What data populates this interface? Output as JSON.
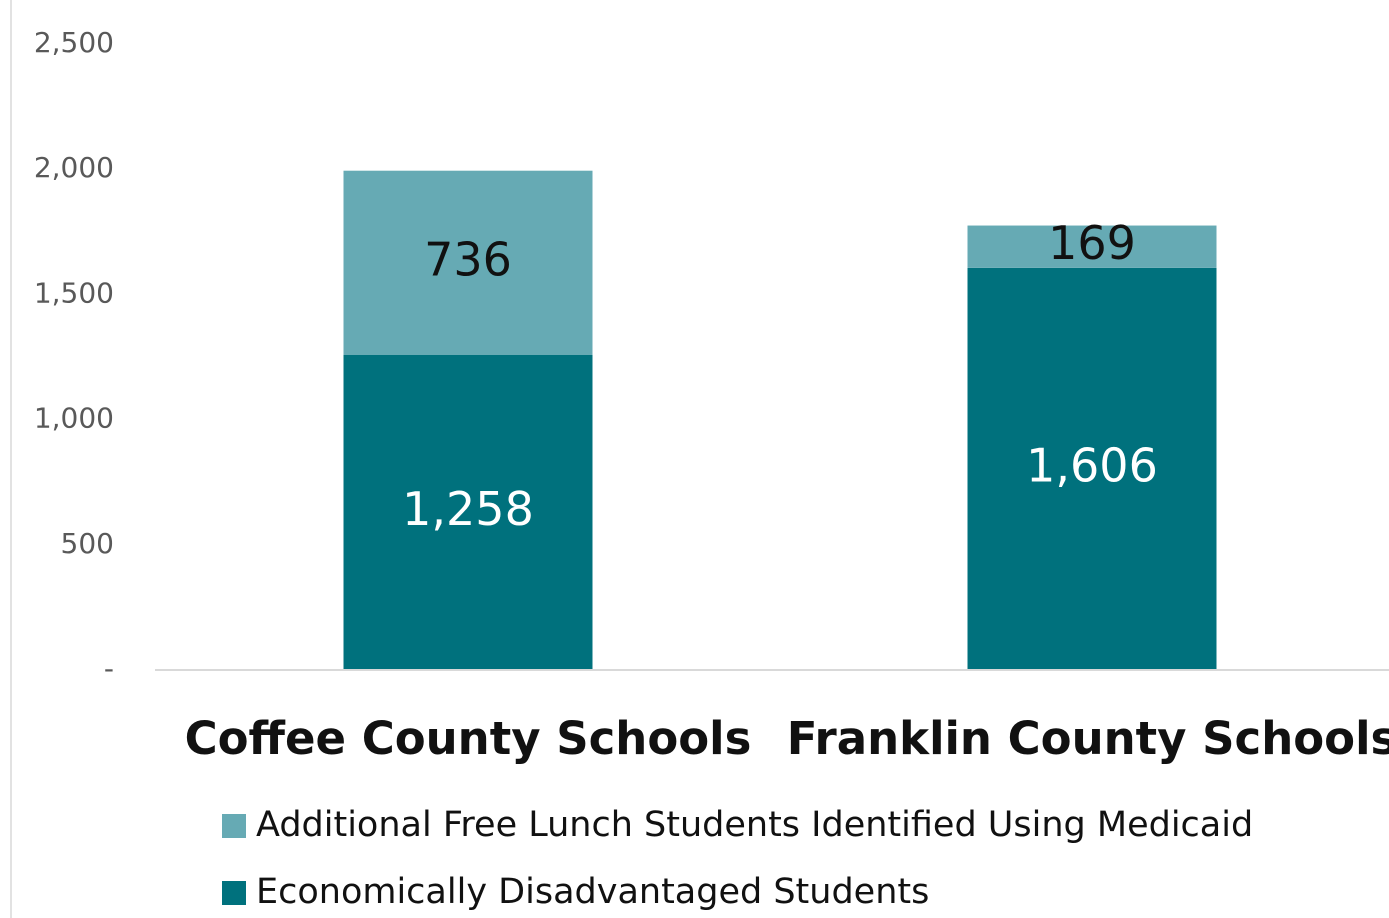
{
  "chart_data": {
    "type": "bar",
    "stacked": true,
    "categories": [
      "Coffee County Schools",
      "Franklin County Schools"
    ],
    "series": [
      {
        "name": "Economically Disadvantaged Students",
        "values": [
          1258,
          1606
        ],
        "labels": [
          "1,258",
          "1,606"
        ],
        "color": "#00717d"
      },
      {
        "name": "Additional Free Lunch Students Identified Using Medicaid",
        "values": [
          736,
          169
        ],
        "labels": [
          "736",
          "169"
        ],
        "color": "#66aab4"
      }
    ],
    "ylim": [
      0,
      2500
    ],
    "yticks": [
      0,
      500,
      1000,
      1500,
      2000,
      2500
    ],
    "ytick_labels": [
      "-",
      "500",
      "1,000",
      "1,500",
      "2,000",
      "2,500"
    ],
    "legend_order": [
      1,
      0
    ],
    "legend_position": "bottom-left",
    "grid": false,
    "title": "",
    "xlabel": "",
    "ylabel": ""
  }
}
